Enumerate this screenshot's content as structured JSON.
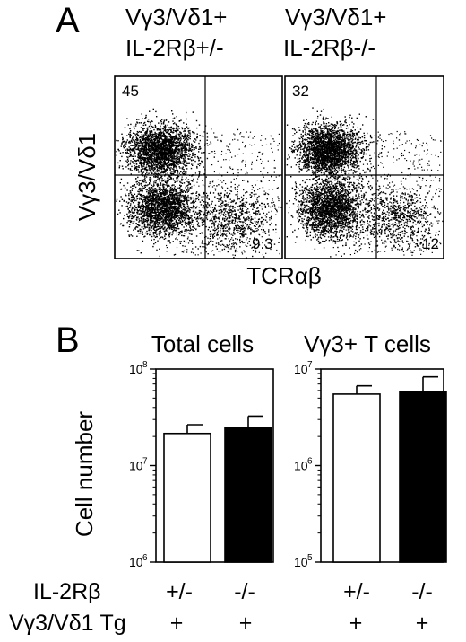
{
  "panel_a": {
    "letter": "A",
    "plots": [
      {
        "title_line1": "Vγ3/Vδ1+",
        "title_line2": "IL-2Rβ+/-",
        "q_upper_left": "45",
        "q_lower_right": "9.3"
      },
      {
        "title_line1": "Vγ3/Vδ1+",
        "title_line2": "IL-2Rβ-/-",
        "q_upper_left": "32",
        "q_lower_right": "12"
      }
    ],
    "ylabel": "Vγ3/Vδ1",
    "xlabel": "TCRαβ"
  },
  "panel_b": {
    "letter": "B",
    "ylabel": "Cell number",
    "row_labels": {
      "il2rb": "IL-2Rβ",
      "tg": "Vγ3/Vδ1 Tg"
    },
    "groups": [
      {
        "il2rb": "+/-",
        "tg": "+"
      },
      {
        "il2rb": "-/-",
        "tg": "+"
      }
    ]
  },
  "chart_data": [
    {
      "type": "bar",
      "title": "Total cells",
      "ylabel": "Cell number",
      "yscale": "log",
      "ylim": [
        1000000,
        100000000
      ],
      "yticks": [
        {
          "base": "10",
          "exp": "8"
        },
        {
          "base": "10",
          "exp": "7"
        },
        {
          "base": "10",
          "exp": "6"
        }
      ],
      "categories": [
        "+/-",
        "-/-"
      ],
      "values": [
        21500000,
        24500000
      ],
      "errors": [
        5000000,
        8000000
      ],
      "bar_colors": [
        "#ffffff",
        "#000000"
      ]
    },
    {
      "type": "bar",
      "title": "Vγ3+ T cells",
      "ylabel": "Cell number",
      "yscale": "log",
      "ylim": [
        100000,
        10000000
      ],
      "yticks": [
        {
          "base": "10",
          "exp": "7"
        },
        {
          "base": "10",
          "exp": "6"
        },
        {
          "base": "10",
          "exp": "5"
        }
      ],
      "categories": [
        "+/-",
        "-/-"
      ],
      "values": [
        5500000,
        5800000
      ],
      "errors": [
        1200000,
        2500000
      ],
      "bar_colors": [
        "#ffffff",
        "#000000"
      ]
    }
  ]
}
